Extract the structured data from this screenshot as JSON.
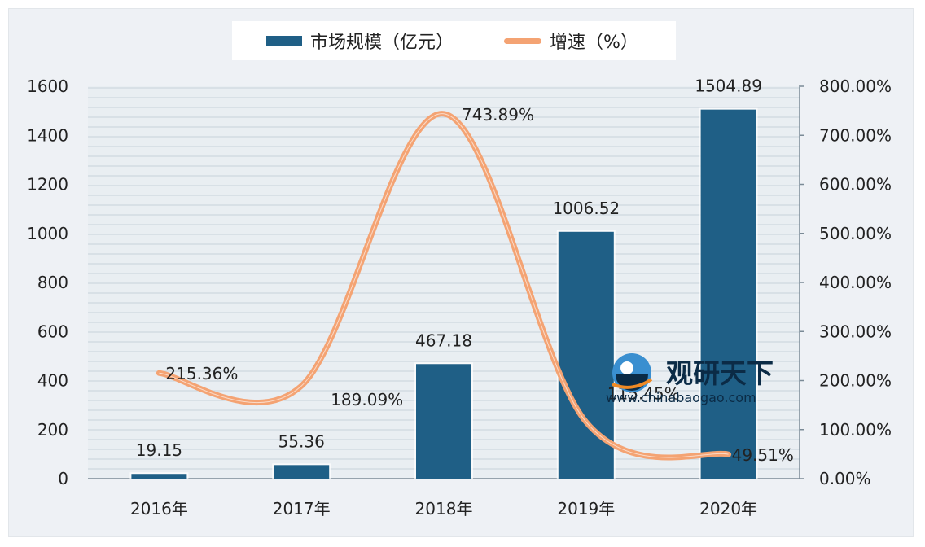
{
  "legend": {
    "bar_label": "市场规模（亿元）",
    "line_label": "增速（%）"
  },
  "watermark": {
    "name": "观研天下",
    "url": "www.chinabaogao.com"
  },
  "colors": {
    "bar": "#1f5f86",
    "line": "#f4a373",
    "plot_bg": "#e9eef2",
    "grid": "#c7d2db"
  },
  "chart_data": {
    "type": "bar",
    "categories": [
      "2016年",
      "2017年",
      "2018年",
      "2019年",
      "2020年"
    ],
    "series": [
      {
        "name": "市场规模（亿元）",
        "type": "bar",
        "axis": "left",
        "values": [
          19.15,
          55.36,
          467.18,
          1006.52,
          1504.89
        ],
        "labels": [
          "19.15",
          "55.36",
          "467.18",
          "1006.52",
          "1504.89"
        ]
      },
      {
        "name": "增速（%）",
        "type": "line",
        "axis": "right",
        "smooth": true,
        "values": [
          215.36,
          189.09,
          743.89,
          115.45,
          49.51
        ],
        "labels": [
          "215.36%",
          "189.09%",
          "743.89%",
          "115.45%",
          "49.51%"
        ]
      }
    ],
    "y_left": {
      "min": 0,
      "max": 1600,
      "ticks": [
        "0",
        "200",
        "400",
        "600",
        "800",
        "1000",
        "1200",
        "1400",
        "1600"
      ]
    },
    "y_right": {
      "min": 0,
      "max": 800,
      "ticks": [
        "0.00%",
        "100.00%",
        "200.00%",
        "300.00%",
        "400.00%",
        "500.00%",
        "600.00%",
        "700.00%",
        "800.00%"
      ]
    },
    "grid": true,
    "legend_position": "top-center"
  }
}
